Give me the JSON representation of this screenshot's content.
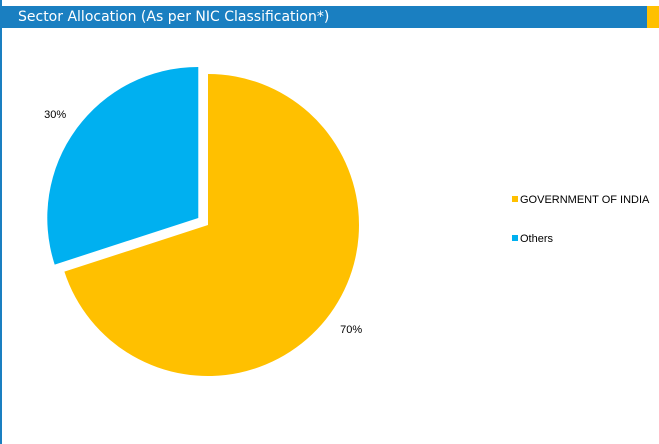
{
  "header": {
    "title": "Sector Allocation (As per NIC Classification*)"
  },
  "colors": {
    "header_bg": "#1a7fc1",
    "header_accent": "#ffc000"
  },
  "chart_data": {
    "type": "pie",
    "title": "",
    "slices": [
      {
        "name": "GOVERNMENT OF INDIA",
        "value": 70,
        "label": "70%",
        "color": "#ffc000"
      },
      {
        "name": "Others",
        "value": 30,
        "label": "30%",
        "color": "#00b0f0"
      }
    ],
    "exploded_slice": "Others",
    "legend_position": "right"
  }
}
